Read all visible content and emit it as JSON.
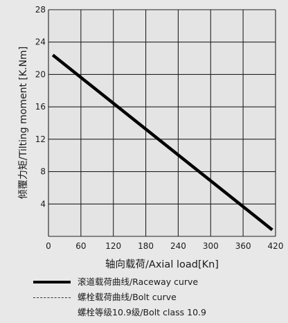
{
  "chart_data": {
    "type": "line",
    "xlabel": "轴向载荷/Axial load[Kn]",
    "ylabel": "倾覆力矩/Tilting moment [K.Nm]",
    "xlim": [
      0,
      420
    ],
    "ylim": [
      0,
      28
    ],
    "x_ticks": [
      "0",
      "60",
      "120",
      "180",
      "240",
      "300",
      "360",
      "420"
    ],
    "y_ticks": [
      "28",
      "24",
      "20",
      "16",
      "12",
      "8",
      "4"
    ],
    "grid": true,
    "series": [
      {
        "name": "滚道载荷曲线/Raceway curve",
        "style": "thick-solid",
        "color": "#000000",
        "points": [
          [
            8,
            22.4
          ],
          [
            414,
            0.8
          ]
        ]
      }
    ],
    "legend": [
      {
        "label": "滚道载荷曲线/Raceway curve",
        "style": "thick"
      },
      {
        "label": "螺栓载荷曲线/Bolt curve",
        "style": "thin"
      },
      {
        "label": "螺栓等级10.9级/Bolt class 10.9",
        "style": "none"
      }
    ]
  },
  "colors": {
    "background": "#e8e8e8",
    "plot_background": "#e4e4e4",
    "grid": "#222222",
    "line": "#000000"
  }
}
